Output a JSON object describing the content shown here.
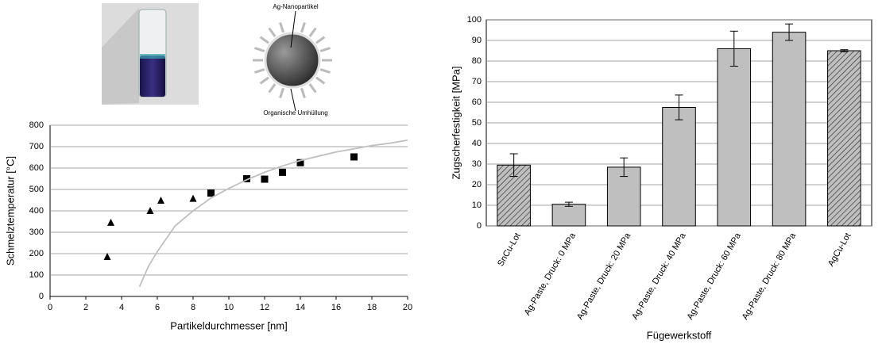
{
  "diagram": {
    "labels": [
      "Ag-Nanopartikel",
      "Organische Umhüllung"
    ]
  },
  "chart_data": [
    {
      "type": "scatter",
      "xlabel": "Partikeldurchmesser  [nm]",
      "ylabel": "Schmelztemperatur [°C]",
      "xlim": [
        0,
        20
      ],
      "xticks": [
        0,
        2,
        4,
        6,
        8,
        10,
        12,
        14,
        16,
        18,
        20
      ],
      "ylim": [
        0,
        800
      ],
      "yticks": [
        0,
        100,
        200,
        300,
        400,
        500,
        600,
        700,
        800
      ],
      "grid": true,
      "series": [
        {
          "marker": "triangle",
          "color": "#000000",
          "x": [
            3.2,
            3.4,
            5.6,
            6.2,
            8
          ],
          "values": [
            185,
            345,
            400,
            448,
            457
          ]
        },
        {
          "marker": "square",
          "color": "#000000",
          "x": [
            9,
            11,
            12,
            13,
            14,
            17
          ],
          "values": [
            483,
            550,
            548,
            580,
            625,
            652
          ]
        },
        {
          "marker": "line",
          "color": "#c0c0c0",
          "x": [
            5,
            5.5,
            6,
            7,
            8,
            9,
            10,
            11,
            12,
            13,
            14,
            15,
            16,
            17,
            18,
            19,
            20
          ],
          "values": [
            45,
            140,
            210,
            330,
            400,
            460,
            505,
            545,
            580,
            610,
            635,
            655,
            675,
            690,
            705,
            716,
            730
          ]
        }
      ]
    },
    {
      "type": "bar",
      "xlabel": "Fügewerkstoff",
      "ylabel": "Zugscherfestigkeit [MPa]",
      "categories": [
        "SnCu-Lot",
        "Ag-Paste, Druck: 0 MPa",
        "Ag-Paste, Druck: 20 MPa",
        "Ag-Paste, Druck: 40 MPa",
        "Ag-Paste, Druck: 60 MPa",
        "Ag-Paste, Druck: 80 MPa",
        "AgCu-Lot"
      ],
      "values": [
        29.5,
        10.5,
        28.5,
        57.5,
        86,
        94,
        85
      ],
      "errors": [
        5.5,
        1,
        4.5,
        6,
        8.5,
        4,
        0.5
      ],
      "hatch": [
        true,
        false,
        false,
        false,
        false,
        false,
        true
      ],
      "color": "#bfbfbf",
      "ylim": [
        0,
        100
      ],
      "yticks": [
        0,
        10,
        20,
        30,
        40,
        50,
        60,
        70,
        80,
        90,
        100
      ],
      "grid": true
    }
  ]
}
